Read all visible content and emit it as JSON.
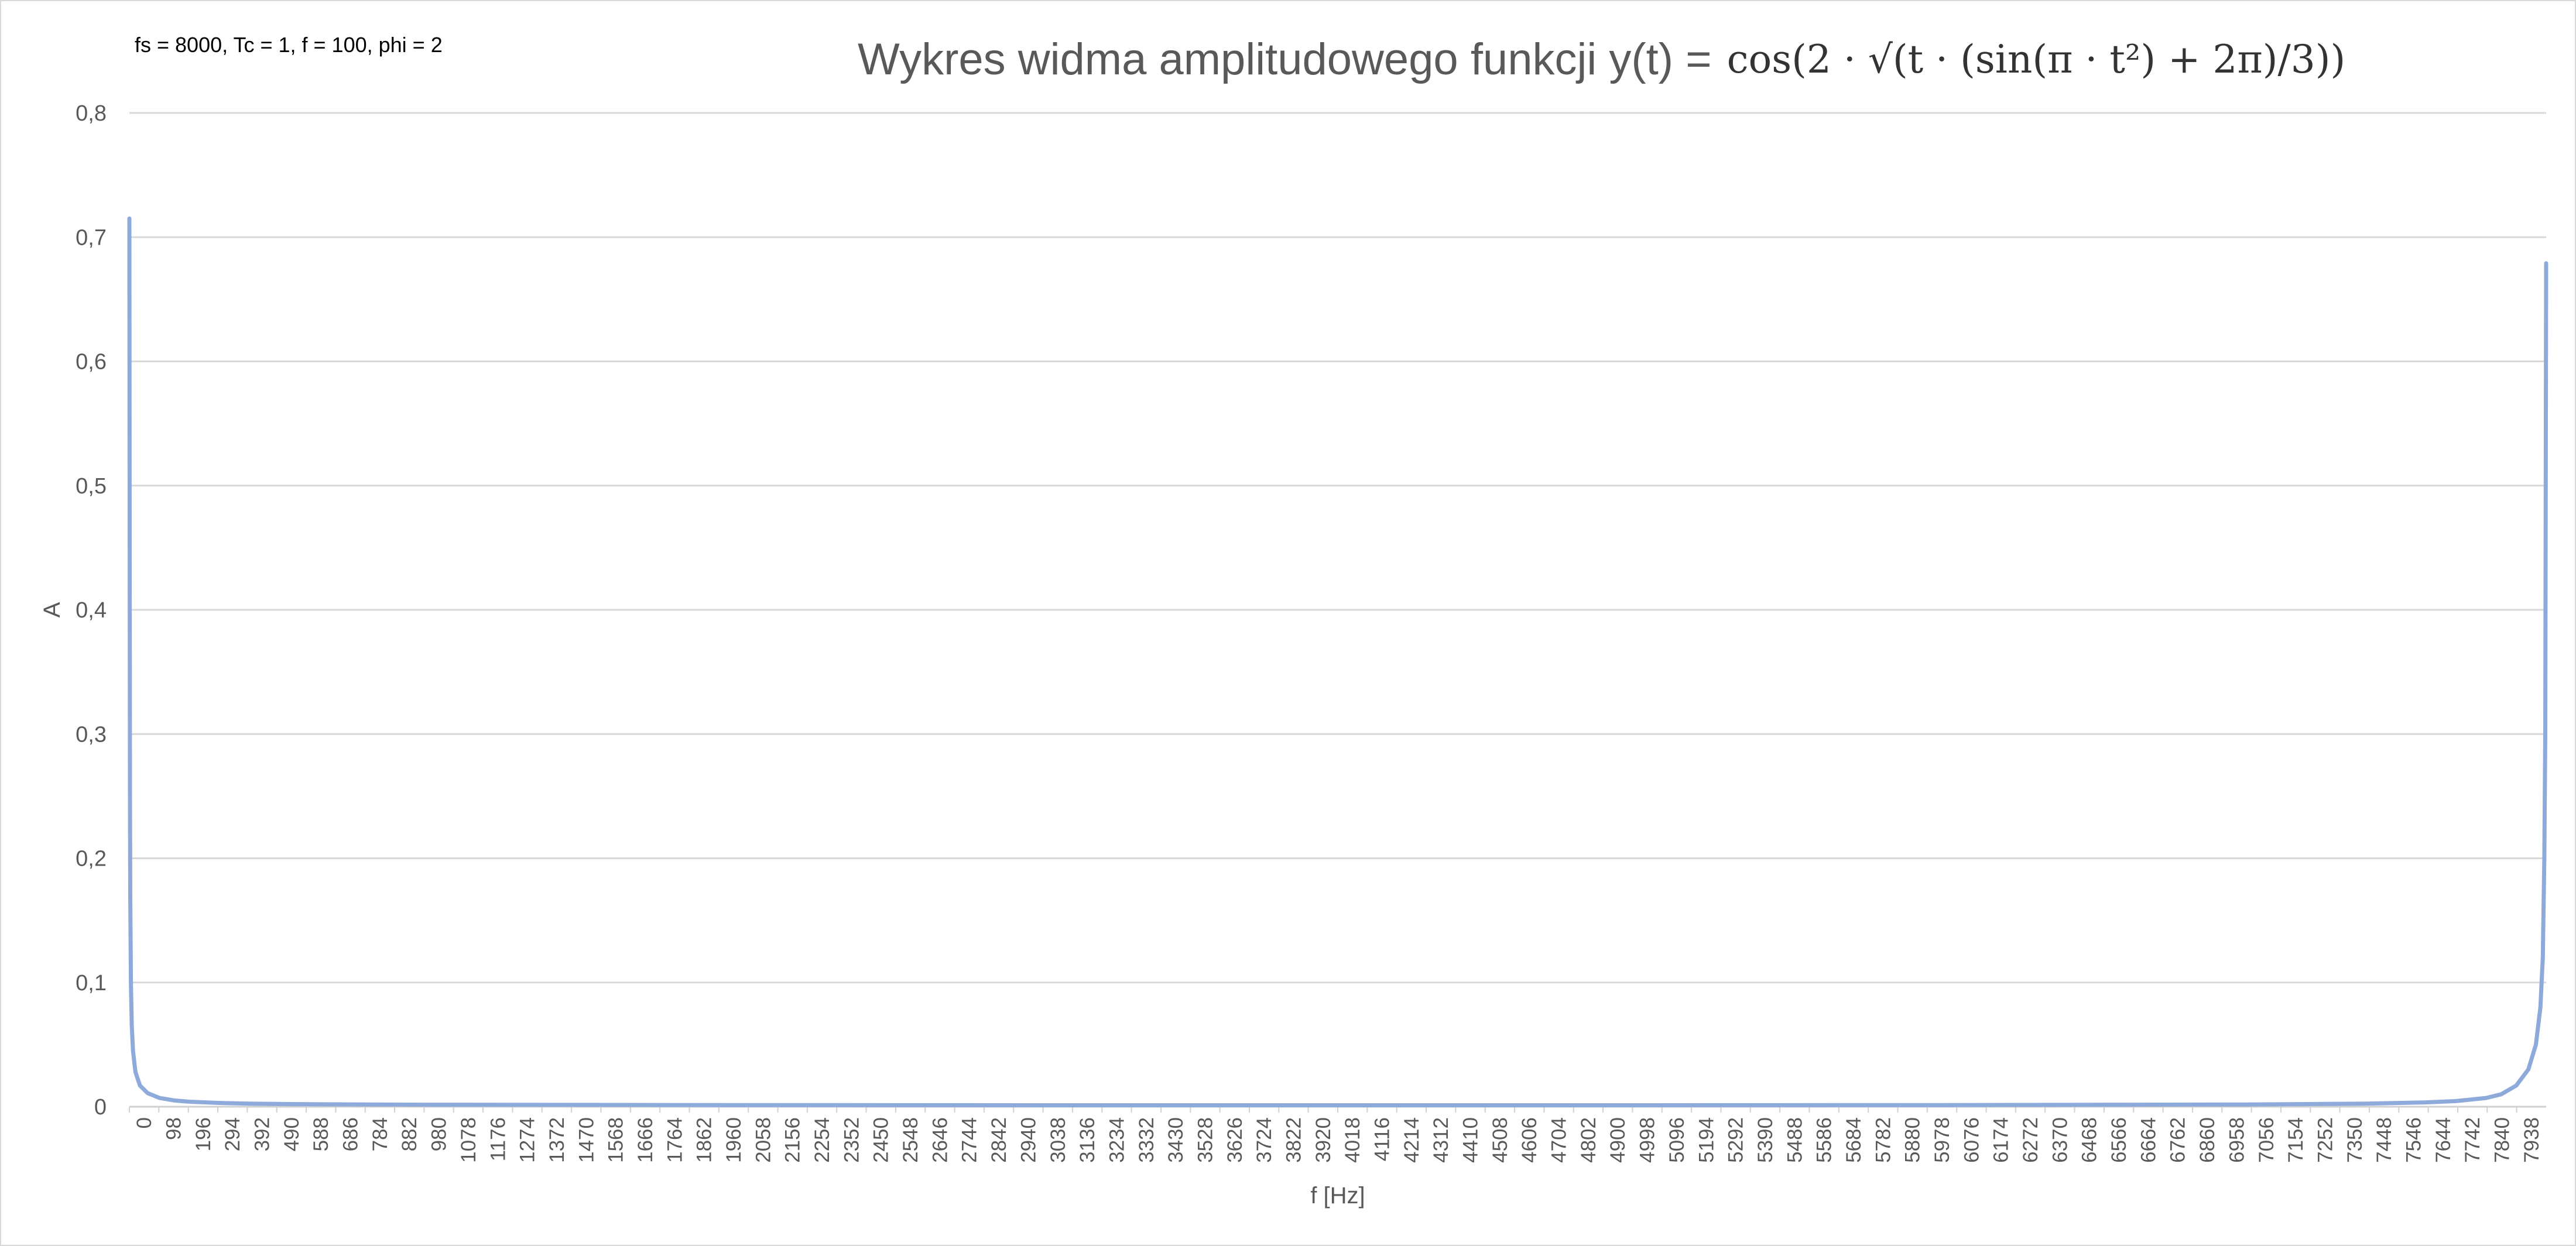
{
  "chart_data": {
    "type": "line",
    "annotation": "fs = 8000, Tc = 1, f = 100, phi = 2",
    "title": "Wykres widma amplitudowego funkcji y(t) =",
    "title_formula": "cos(2 · √(t · (sin(π · t²) + 2π)/3))",
    "xlabel": "f [Hz]",
    "ylabel": "A",
    "xlim": [
      0,
      7999
    ],
    "ylim": [
      0,
      0.8
    ],
    "y_ticks": [
      "0",
      "0,1",
      "0,2",
      "0,3",
      "0,4",
      "0,5",
      "0,6",
      "0,7",
      "0,8"
    ],
    "x_ticks": [
      "0",
      "98",
      "196",
      "294",
      "392",
      "490",
      "588",
      "686",
      "784",
      "882",
      "980",
      "1078",
      "1176",
      "1274",
      "1372",
      "1470",
      "1568",
      "1666",
      "1764",
      "1862",
      "1960",
      "2058",
      "2156",
      "2254",
      "2352",
      "2450",
      "2548",
      "2646",
      "2744",
      "2842",
      "2940",
      "3038",
      "3136",
      "3234",
      "3332",
      "3430",
      "3528",
      "3626",
      "3724",
      "3822",
      "3920",
      "4018",
      "4116",
      "4214",
      "4312",
      "4410",
      "4508",
      "4606",
      "4704",
      "4802",
      "4900",
      "4998",
      "5096",
      "5194",
      "5292",
      "5390",
      "5488",
      "5586",
      "5684",
      "5782",
      "5880",
      "5978",
      "6076",
      "6174",
      "6272",
      "6370",
      "6468",
      "6566",
      "6664",
      "6762",
      "6860",
      "6958",
      "7056",
      "7154",
      "7252",
      "7350",
      "7448",
      "7546",
      "7644",
      "7742",
      "7840",
      "7938"
    ],
    "grid": true,
    "legend": "none",
    "series": [
      {
        "color": "#8eaadb",
        "x": [
          0,
          1,
          2,
          3,
          5,
          8,
          12,
          20,
          35,
          60,
          100,
          150,
          200,
          300,
          400,
          600,
          800,
          1000,
          2000,
          3000,
          4000,
          5000,
          6000,
          7000,
          7400,
          7600,
          7700,
          7800,
          7850,
          7900,
          7940,
          7965,
          7980,
          7988,
          7993,
          7996,
          7997,
          7998,
          7999
        ],
        "y": [
          0.715,
          0.45,
          0.25,
          0.17,
          0.1,
          0.065,
          0.045,
          0.028,
          0.017,
          0.011,
          0.007,
          0.005,
          0.004,
          0.003,
          0.0025,
          0.002,
          0.0018,
          0.0016,
          0.0013,
          0.0012,
          0.0012,
          0.0012,
          0.0013,
          0.0018,
          0.0025,
          0.0035,
          0.0045,
          0.007,
          0.01,
          0.017,
          0.03,
          0.05,
          0.08,
          0.12,
          0.2,
          0.3,
          0.42,
          0.55,
          0.679
        ]
      }
    ]
  }
}
